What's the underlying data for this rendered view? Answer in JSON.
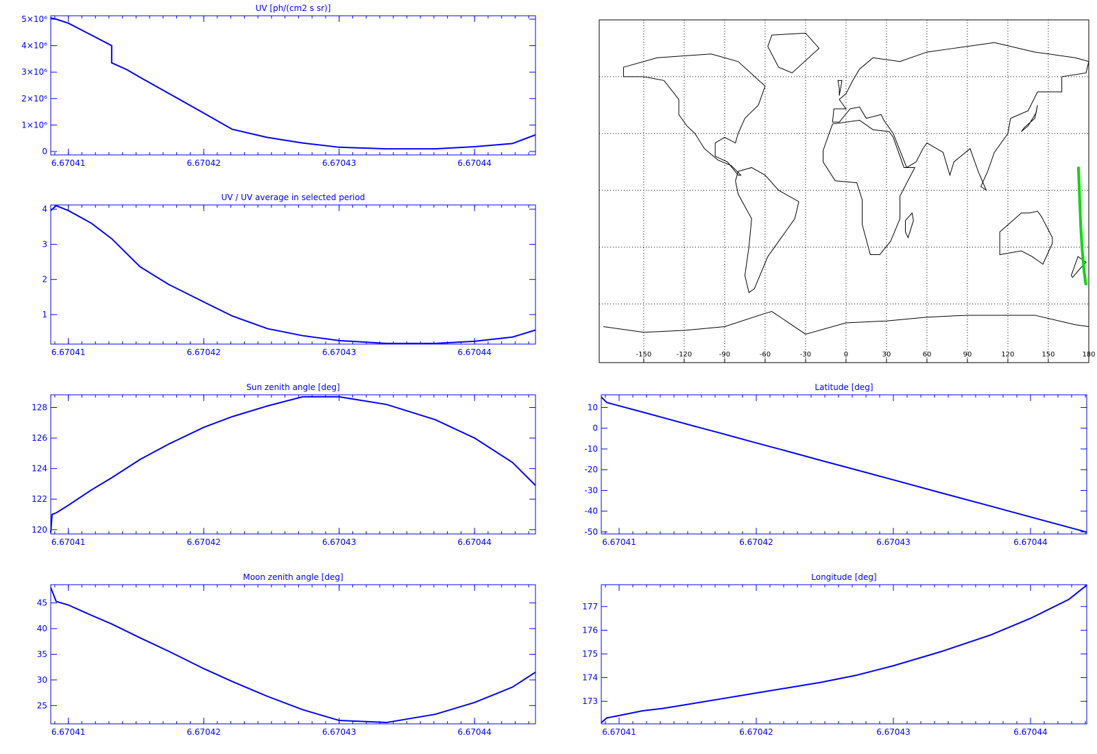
{
  "chart_data": [
    {
      "type": "line",
      "title": "UV [ph/(cm2 s sr)]",
      "color": "#0000ff",
      "x": [
        6.6704087,
        6.6704091,
        6.67041,
        6.6704117,
        6.6704132,
        6.6704132,
        6.6704143,
        6.6704153,
        6.6704174,
        6.67042,
        6.6704221,
        6.6704247,
        6.6704273,
        6.67043,
        6.6704335,
        6.6704371,
        6.67044,
        6.6704428,
        6.6704445
      ],
      "values": [
        5050000,
        5000000,
        4850000,
        4400000,
        4000000,
        3350000,
        3100000,
        2800000,
        2200000,
        1450000,
        840000,
        530000,
        320000,
        160000,
        100000,
        100000,
        180000,
        300000,
        630000
      ],
      "xlim": [
        6.6704087,
        6.6704445
      ],
      "ylim": [
        -130000,
        5130000
      ],
      "xticks": [
        6.67041,
        6.67042,
        6.67043,
        6.67044
      ],
      "yticks": [
        0,
        {
          "value": 1000000,
          "label": "1×10⁶"
        },
        {
          "value": 2000000,
          "label": "2×10⁶"
        },
        {
          "value": 3000000,
          "label": "3×10⁶"
        },
        {
          "value": 4000000,
          "label": "4×10⁶"
        },
        {
          "value": 5000000,
          "label": "5×10⁶"
        }
      ]
    },
    {
      "type": "line",
      "title": "UV / UV average in selected period",
      "color": "#0000ff",
      "x": [
        6.6704087,
        6.6704091,
        6.67041,
        6.6704117,
        6.6704132,
        6.6704153,
        6.6704174,
        6.67042,
        6.6704221,
        6.6704247,
        6.6704273,
        6.67043,
        6.6704335,
        6.6704371,
        6.67044,
        6.6704428,
        6.6704445
      ],
      "values": [
        3.96,
        4.1,
        3.96,
        3.6,
        3.16,
        2.36,
        1.86,
        1.36,
        0.96,
        0.6,
        0.4,
        0.26,
        0.18,
        0.18,
        0.24,
        0.36,
        0.56
      ],
      "xlim": [
        6.6704087,
        6.6704445
      ],
      "ylim": [
        0.16,
        4.12
      ],
      "xticks": [
        6.67041,
        6.67042,
        6.67043,
        6.67044
      ],
      "yticks": [
        1,
        2,
        3,
        4
      ]
    },
    {
      "type": "map",
      "xlim": [
        -183,
        180
      ],
      "ylim": [
        -91,
        90
      ],
      "xticks": [
        -150,
        -120,
        -90,
        -60,
        -30,
        0,
        30,
        60,
        90,
        120,
        150,
        180
      ],
      "track": {
        "color": "#00dd00",
        "x": [
          172.3,
          172.9,
          173.35,
          174.1,
          175.1,
          176.5,
          177.9
        ],
        "y": [
          12.4,
          1.3,
          -7.1,
          -20.1,
          -31.2,
          -42.8,
          -50.1
        ]
      }
    },
    {
      "type": "line",
      "title": "Sun zenith angle [deg]",
      "color": "#0000ff",
      "x": [
        6.6704087,
        6.6704088,
        6.6704091,
        6.67041,
        6.6704117,
        6.6704132,
        6.6704153,
        6.6704174,
        6.67042,
        6.6704221,
        6.6704247,
        6.6704273,
        6.67043,
        6.6704335,
        6.6704371,
        6.67044,
        6.6704428,
        6.6704445
      ],
      "values": [
        119.8,
        121,
        121.1,
        121.6,
        122.6,
        123.4,
        124.6,
        125.6,
        126.7,
        127.4,
        128.1,
        128.7,
        128.7,
        128.2,
        127.2,
        126,
        124.4,
        122.9
      ],
      "xlim": [
        6.6704087,
        6.6704445
      ],
      "ylim": [
        119.72,
        128.83
      ],
      "xticks": [
        6.67041,
        6.67042,
        6.67043,
        6.67044
      ],
      "yticks": [
        120,
        122,
        124,
        126,
        128
      ]
    },
    {
      "type": "line",
      "title": "Latitude [deg]",
      "color": "#0000ff",
      "x": [
        6.6704087,
        6.6704091,
        6.67041,
        6.6704117,
        6.6704132,
        6.6704153,
        6.6704174,
        6.67042,
        6.6704221,
        6.6704247,
        6.6704273,
        6.67043,
        6.6704335,
        6.6704371,
        6.67044,
        6.6704428,
        6.6704441
      ],
      "values": [
        15,
        12.4,
        10.8,
        7.8,
        5.1,
        1.3,
        -2.4,
        -7.1,
        -10.8,
        -15.5,
        -20.1,
        -24.9,
        -31.2,
        -37.6,
        -42.8,
        -47.8,
        -50.1
      ],
      "xlim": [
        6.6704087,
        6.6704441
      ],
      "ylim": [
        -51,
        16.1
      ],
      "xticks": [
        6.67041,
        6.67042,
        6.67043,
        6.67044
      ],
      "yticks": [
        -50,
        -40,
        -30,
        -20,
        -10,
        0,
        10
      ]
    },
    {
      "type": "line",
      "title": "Moon zenith angle [deg]",
      "color": "#0000ff",
      "x": [
        6.6704087,
        6.6704091,
        6.67041,
        6.6704117,
        6.6704132,
        6.6704153,
        6.6704174,
        6.67042,
        6.6704221,
        6.6704247,
        6.6704273,
        6.67043,
        6.6704335,
        6.6704371,
        6.67044,
        6.6704428,
        6.6704445
      ],
      "values": [
        48,
        45.3,
        44.6,
        42.6,
        40.9,
        38.2,
        35.6,
        32.2,
        29.7,
        26.8,
        24.2,
        22.1,
        21.7,
        23.3,
        25.6,
        28.6,
        31.5
      ],
      "xlim": [
        6.6704087,
        6.6704445
      ],
      "ylim": [
        21.44,
        48.56
      ],
      "xticks": [
        6.67041,
        6.67042,
        6.67043,
        6.67044
      ],
      "yticks": [
        25,
        30,
        35,
        40,
        45
      ]
    },
    {
      "type": "line",
      "title": "Longitude [deg]",
      "color": "#0000ff",
      "x": [
        6.6704087,
        6.6704091,
        6.67041,
        6.6704117,
        6.6704132,
        6.6704153,
        6.6704174,
        6.67042,
        6.6704221,
        6.6704247,
        6.6704273,
        6.67043,
        6.6704335,
        6.6704371,
        6.67044,
        6.6704428,
        6.6704441
      ],
      "values": [
        172.1,
        172.3,
        172.4,
        172.6,
        172.7,
        172.9,
        173.1,
        173.35,
        173.55,
        173.8,
        174.1,
        174.5,
        175.1,
        175.8,
        176.5,
        177.3,
        177.9
      ],
      "xlim": [
        6.6704087,
        6.6704441
      ],
      "ylim": [
        172.05,
        177.92
      ],
      "xticks": [
        6.67041,
        6.67042,
        6.67043,
        6.67044
      ],
      "yticks": [
        173,
        174,
        175,
        176,
        177
      ]
    }
  ]
}
